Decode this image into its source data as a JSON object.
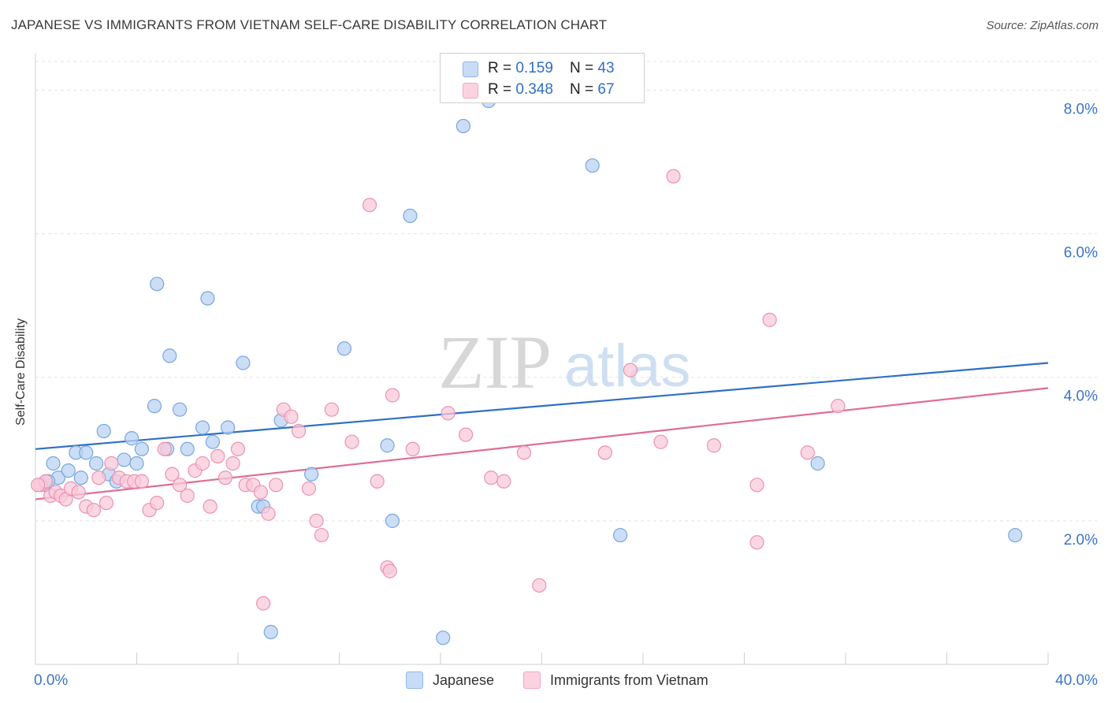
{
  "header": {
    "title": "JAPANESE VS IMMIGRANTS FROM VIETNAM SELF-CARE DISABILITY CORRELATION CHART",
    "source": "Source: ZipAtlas.com"
  },
  "watermark": {
    "zip": "ZIP",
    "atlas": "atlas"
  },
  "legend": {
    "rows": [
      {
        "r_label": "R = ",
        "r_value": "0.159",
        "n_label": "N = ",
        "n_value": "43",
        "color": "#8fb8ea"
      },
      {
        "r_label": "R = ",
        "r_value": "0.348",
        "n_label": "N = ",
        "n_value": "67",
        "color": "#f3a6c0"
      }
    ]
  },
  "bottom_legend": [
    {
      "label": "Japanese",
      "color": "#8fb8ea"
    },
    {
      "label": "Immigrants from Vietnam",
      "color": "#f3a6c0"
    }
  ],
  "colors": {
    "japanese_fill": "#b9d3f3",
    "japanese_stroke": "#7aa6dd",
    "japanese_line": "#2f6fc6",
    "vietnam_fill": "#f9cad9",
    "vietnam_stroke": "#eb92b1",
    "vietnam_line": "#e06c96",
    "axis_text": "#3a74c8"
  },
  "chart_data": {
    "type": "scatter",
    "title": "JAPANESE VS IMMIGRANTS FROM VIETNAM SELF-CARE DISABILITY CORRELATION CHART",
    "xlabel": "",
    "ylabel": "Self-Care Disability",
    "xlim": [
      0,
      40
    ],
    "ylim": [
      0,
      8.4
    ],
    "x_tick_labels": [
      "0.0%",
      "40.0%"
    ],
    "y_ticks": [
      2,
      4,
      6,
      8
    ],
    "y_tick_labels": [
      "2.0%",
      "4.0%",
      "6.0%",
      "8.0%"
    ],
    "grid": true,
    "legend_position": "top-center",
    "series": [
      {
        "name": "Japanese",
        "points": [
          [
            0.4,
            2.5
          ],
          [
            0.7,
            2.8
          ],
          [
            0.9,
            2.6
          ],
          [
            1.3,
            2.7
          ],
          [
            1.6,
            2.95
          ],
          [
            1.8,
            2.6
          ],
          [
            2.0,
            2.95
          ],
          [
            2.4,
            2.8
          ],
          [
            2.7,
            3.25
          ],
          [
            2.9,
            2.65
          ],
          [
            3.2,
            2.55
          ],
          [
            3.5,
            2.85
          ],
          [
            3.8,
            3.15
          ],
          [
            4.0,
            2.8
          ],
          [
            4.2,
            3.0
          ],
          [
            4.7,
            3.6
          ],
          [
            4.8,
            5.3
          ],
          [
            5.2,
            3.0
          ],
          [
            5.3,
            4.3
          ],
          [
            5.7,
            3.55
          ],
          [
            6.0,
            3.0
          ],
          [
            6.6,
            3.3
          ],
          [
            6.8,
            5.1
          ],
          [
            7.0,
            3.1
          ],
          [
            7.6,
            3.3
          ],
          [
            8.2,
            4.2
          ],
          [
            8.8,
            2.2
          ],
          [
            9.0,
            2.2
          ],
          [
            9.3,
            0.45
          ],
          [
            9.7,
            3.4
          ],
          [
            10.9,
            2.65
          ],
          [
            12.2,
            4.4
          ],
          [
            13.9,
            3.05
          ],
          [
            14.1,
            2.0
          ],
          [
            14.8,
            6.25
          ],
          [
            16.1,
            0.37
          ],
          [
            16.9,
            7.5
          ],
          [
            17.9,
            7.85
          ],
          [
            22.0,
            6.95
          ],
          [
            23.1,
            1.8
          ],
          [
            30.9,
            2.8
          ],
          [
            38.7,
            1.8
          ],
          [
            0.5,
            2.55
          ]
        ]
      },
      {
        "name": "Immigrants from Vietnam",
        "points": [
          [
            0.2,
            2.5
          ],
          [
            0.4,
            2.55
          ],
          [
            0.6,
            2.35
          ],
          [
            0.8,
            2.4
          ],
          [
            1.0,
            2.35
          ],
          [
            1.2,
            2.3
          ],
          [
            1.4,
            2.45
          ],
          [
            1.7,
            2.4
          ],
          [
            2.0,
            2.2
          ],
          [
            2.3,
            2.15
          ],
          [
            2.5,
            2.6
          ],
          [
            2.8,
            2.25
          ],
          [
            3.0,
            2.8
          ],
          [
            3.3,
            2.6
          ],
          [
            3.6,
            2.55
          ],
          [
            3.9,
            2.55
          ],
          [
            4.2,
            2.55
          ],
          [
            4.5,
            2.15
          ],
          [
            4.8,
            2.25
          ],
          [
            5.1,
            3.0
          ],
          [
            5.4,
            2.65
          ],
          [
            5.7,
            2.5
          ],
          [
            6.0,
            2.35
          ],
          [
            6.3,
            2.7
          ],
          [
            6.6,
            2.8
          ],
          [
            6.9,
            2.2
          ],
          [
            7.2,
            2.9
          ],
          [
            7.5,
            2.6
          ],
          [
            7.8,
            2.8
          ],
          [
            8.0,
            3.0
          ],
          [
            8.3,
            2.5
          ],
          [
            8.6,
            2.5
          ],
          [
            8.9,
            2.4
          ],
          [
            9.2,
            2.1
          ],
          [
            9.5,
            2.5
          ],
          [
            9.8,
            3.55
          ],
          [
            10.1,
            3.45
          ],
          [
            10.4,
            3.25
          ],
          [
            10.8,
            2.45
          ],
          [
            11.1,
            2.0
          ],
          [
            11.3,
            1.8
          ],
          [
            11.7,
            3.55
          ],
          [
            12.5,
            3.1
          ],
          [
            13.2,
            6.4
          ],
          [
            13.5,
            2.55
          ],
          [
            13.9,
            1.35
          ],
          [
            14.0,
            1.3
          ],
          [
            14.1,
            3.75
          ],
          [
            14.9,
            3.0
          ],
          [
            16.3,
            3.5
          ],
          [
            17.0,
            3.2
          ],
          [
            18.0,
            2.6
          ],
          [
            18.5,
            2.55
          ],
          [
            19.3,
            2.95
          ],
          [
            19.9,
            1.1
          ],
          [
            9.0,
            0.85
          ],
          [
            22.5,
            2.95
          ],
          [
            23.5,
            4.1
          ],
          [
            24.7,
            3.1
          ],
          [
            25.2,
            6.8
          ],
          [
            26.8,
            3.05
          ],
          [
            28.5,
            2.5
          ],
          [
            28.5,
            1.7
          ],
          [
            29.0,
            4.8
          ],
          [
            30.5,
            2.95
          ],
          [
            31.7,
            3.6
          ],
          [
            0.1,
            2.5
          ]
        ]
      }
    ],
    "trendlines": [
      {
        "name": "Japanese",
        "x": [
          0,
          40
        ],
        "y": [
          3.0,
          4.2
        ]
      },
      {
        "name": "Immigrants from Vietnam",
        "x": [
          0,
          40
        ],
        "y": [
          2.3,
          3.85
        ]
      }
    ]
  }
}
